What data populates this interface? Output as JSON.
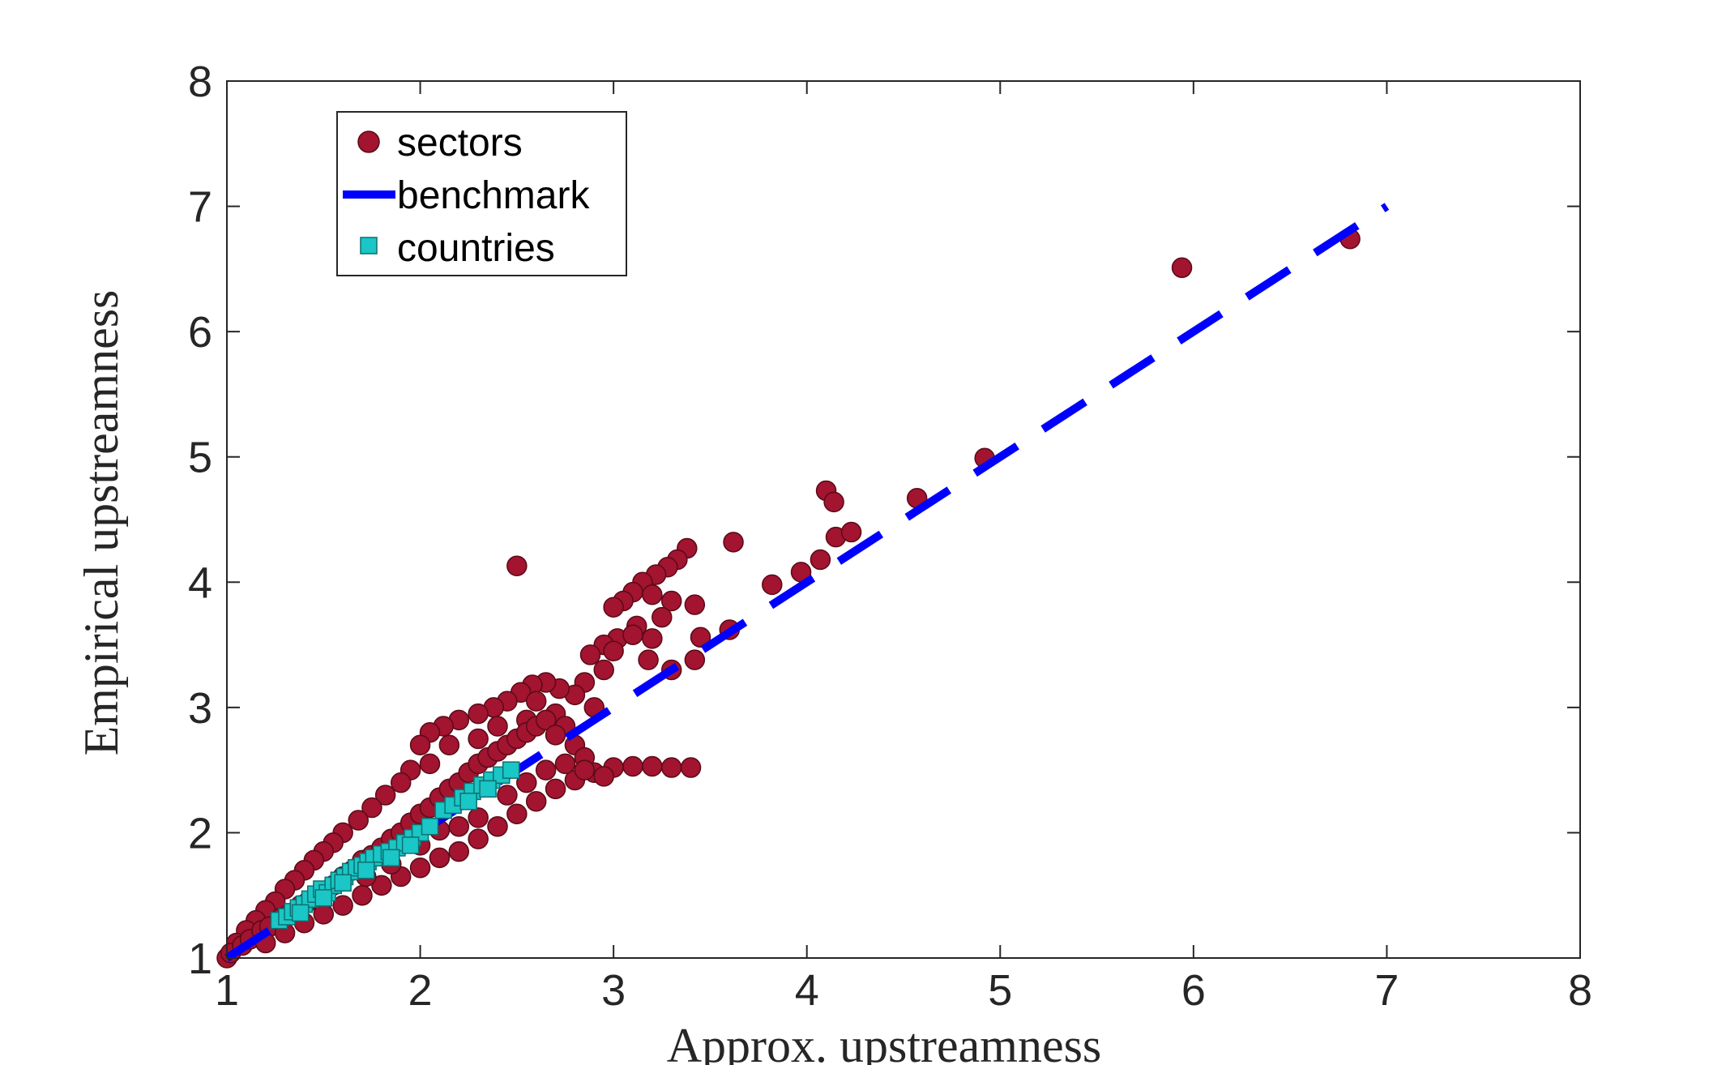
{
  "chart_data": {
    "type": "scatter",
    "xlabel": "Approx. upstreamness",
    "ylabel": "Empirical upstreamness",
    "xlim": [
      1,
      8
    ],
    "ylim": [
      1,
      8
    ],
    "xticks": [
      "1",
      "2",
      "3",
      "4",
      "5",
      "6",
      "7",
      "8"
    ],
    "yticks": [
      "1",
      "2",
      "3",
      "4",
      "5",
      "6",
      "7",
      "8"
    ],
    "grid": false,
    "legend_position": "top-left",
    "legend": [
      "sectors",
      "benchmark",
      "countries"
    ],
    "series": [
      {
        "name": "sectors",
        "kind": "scatter",
        "marker": "circle",
        "color": "#A2142F",
        "points": [
          [
            2.5,
            4.13
          ],
          [
            3.38,
            4.27
          ],
          [
            3.33,
            4.18
          ],
          [
            3.28,
            4.12
          ],
          [
            3.22,
            4.06
          ],
          [
            3.15,
            4.0
          ],
          [
            3.1,
            3.92
          ],
          [
            3.05,
            3.85
          ],
          [
            3.0,
            3.8
          ],
          [
            3.2,
            3.9
          ],
          [
            3.3,
            3.85
          ],
          [
            3.42,
            3.82
          ],
          [
            3.25,
            3.72
          ],
          [
            3.12,
            3.65
          ],
          [
            3.02,
            3.55
          ],
          [
            2.95,
            3.5
          ],
          [
            2.88,
            3.42
          ],
          [
            3.1,
            3.58
          ],
          [
            3.2,
            3.55
          ],
          [
            3.42,
            3.38
          ],
          [
            3.3,
            3.3
          ],
          [
            3.18,
            3.38
          ],
          [
            3.0,
            3.45
          ],
          [
            2.95,
            3.3
          ],
          [
            2.85,
            3.2
          ],
          [
            2.8,
            3.1
          ],
          [
            2.72,
            3.15
          ],
          [
            2.65,
            3.2
          ],
          [
            2.58,
            3.18
          ],
          [
            2.52,
            3.12
          ],
          [
            2.45,
            3.05
          ],
          [
            2.38,
            3.0
          ],
          [
            2.3,
            2.95
          ],
          [
            2.2,
            2.9
          ],
          [
            2.12,
            2.85
          ],
          [
            2.05,
            2.8
          ],
          [
            2.0,
            2.7
          ],
          [
            2.6,
            3.05
          ],
          [
            2.7,
            2.95
          ],
          [
            2.9,
            3.0
          ],
          [
            2.75,
            2.85
          ],
          [
            2.55,
            2.9
          ],
          [
            2.4,
            2.85
          ],
          [
            2.3,
            2.75
          ],
          [
            2.15,
            2.7
          ],
          [
            2.05,
            2.55
          ],
          [
            1.95,
            2.5
          ],
          [
            1.9,
            2.4
          ],
          [
            1.82,
            2.3
          ],
          [
            1.75,
            2.2
          ],
          [
            1.68,
            2.1
          ],
          [
            1.6,
            2.0
          ],
          [
            1.55,
            1.92
          ],
          [
            1.5,
            1.85
          ],
          [
            1.45,
            1.78
          ],
          [
            1.4,
            1.7
          ],
          [
            1.35,
            1.62
          ],
          [
            1.3,
            1.55
          ],
          [
            1.25,
            1.45
          ],
          [
            1.2,
            1.38
          ],
          [
            1.15,
            1.3
          ],
          [
            1.1,
            1.22
          ],
          [
            1.05,
            1.12
          ],
          [
            1.0,
            1.0
          ],
          [
            1.02,
            1.04
          ],
          [
            1.08,
            1.1
          ],
          [
            1.12,
            1.15
          ],
          [
            1.18,
            1.22
          ],
          [
            1.22,
            1.25
          ],
          [
            1.28,
            1.32
          ],
          [
            1.32,
            1.35
          ],
          [
            1.38,
            1.42
          ],
          [
            1.42,
            1.45
          ],
          [
            1.48,
            1.52
          ],
          [
            1.55,
            1.58
          ],
          [
            1.6,
            1.65
          ],
          [
            1.65,
            1.7
          ],
          [
            1.7,
            1.78
          ],
          [
            1.75,
            1.82
          ],
          [
            1.8,
            1.88
          ],
          [
            1.85,
            1.95
          ],
          [
            1.9,
            2.0
          ],
          [
            1.95,
            2.08
          ],
          [
            2.0,
            2.15
          ],
          [
            2.05,
            2.2
          ],
          [
            2.1,
            2.28
          ],
          [
            2.15,
            2.35
          ],
          [
            2.2,
            2.4
          ],
          [
            2.25,
            2.48
          ],
          [
            2.3,
            2.55
          ],
          [
            2.35,
            2.6
          ],
          [
            2.4,
            2.65
          ],
          [
            2.45,
            2.7
          ],
          [
            2.5,
            2.75
          ],
          [
            2.55,
            2.8
          ],
          [
            2.6,
            2.85
          ],
          [
            2.65,
            2.9
          ],
          [
            2.7,
            2.78
          ],
          [
            2.8,
            2.7
          ],
          [
            2.85,
            2.6
          ],
          [
            2.2,
            1.85
          ],
          [
            2.1,
            1.8
          ],
          [
            2.0,
            1.72
          ],
          [
            1.9,
            1.65
          ],
          [
            1.8,
            1.58
          ],
          [
            1.7,
            1.5
          ],
          [
            1.6,
            1.42
          ],
          [
            1.5,
            1.35
          ],
          [
            1.4,
            1.28
          ],
          [
            1.3,
            1.2
          ],
          [
            1.2,
            1.12
          ],
          [
            2.3,
            1.95
          ],
          [
            2.4,
            2.05
          ],
          [
            2.5,
            2.15
          ],
          [
            2.6,
            2.25
          ],
          [
            2.7,
            2.35
          ],
          [
            2.8,
            2.42
          ],
          [
            2.9,
            2.48
          ],
          [
            3.0,
            2.52
          ],
          [
            3.1,
            2.53
          ],
          [
            3.2,
            2.53
          ],
          [
            3.3,
            2.52
          ],
          [
            3.4,
            2.52
          ],
          [
            2.2,
            2.05
          ],
          [
            2.3,
            2.12
          ],
          [
            2.45,
            2.3
          ],
          [
            2.55,
            2.4
          ],
          [
            2.65,
            2.5
          ],
          [
            2.75,
            2.55
          ],
          [
            2.85,
            2.5
          ],
          [
            2.95,
            2.45
          ],
          [
            2.1,
            2.02
          ],
          [
            2.0,
            1.9
          ],
          [
            1.85,
            1.75
          ],
          [
            1.72,
            1.65
          ],
          [
            3.45,
            3.56
          ],
          [
            3.6,
            3.62
          ],
          [
            3.82,
            3.98
          ],
          [
            3.97,
            4.08
          ],
          [
            4.07,
            4.18
          ],
          [
            4.1,
            4.73
          ],
          [
            4.14,
            4.64
          ],
          [
            4.15,
            4.36
          ],
          [
            4.23,
            4.4
          ],
          [
            3.62,
            4.32
          ],
          [
            4.57,
            4.67
          ],
          [
            4.92,
            4.99
          ],
          [
            5.94,
            6.51
          ],
          [
            6.81,
            6.74
          ]
        ]
      },
      {
        "name": "benchmark",
        "kind": "line",
        "style": "dashed",
        "color": "#0000FF",
        "points": [
          [
            1,
            1
          ],
          [
            7,
            7
          ]
        ]
      },
      {
        "name": "countries",
        "kind": "scatter",
        "marker": "square",
        "color": "#1AC6C6",
        "points": [
          [
            1.27,
            1.3
          ],
          [
            1.31,
            1.33
          ],
          [
            1.34,
            1.37
          ],
          [
            1.37,
            1.4
          ],
          [
            1.4,
            1.43
          ],
          [
            1.43,
            1.47
          ],
          [
            1.46,
            1.51
          ],
          [
            1.49,
            1.55
          ],
          [
            1.52,
            1.52
          ],
          [
            1.55,
            1.58
          ],
          [
            1.58,
            1.62
          ],
          [
            1.61,
            1.65
          ],
          [
            1.64,
            1.69
          ],
          [
            1.67,
            1.72
          ],
          [
            1.7,
            1.74
          ],
          [
            1.73,
            1.77
          ],
          [
            1.76,
            1.8
          ],
          [
            1.8,
            1.83
          ],
          [
            1.84,
            1.85
          ],
          [
            1.88,
            1.88
          ],
          [
            1.92,
            1.92
          ],
          [
            1.96,
            1.96
          ],
          [
            2.0,
            2.0
          ],
          [
            2.05,
            2.05
          ],
          [
            2.12,
            2.18
          ],
          [
            2.17,
            2.22
          ],
          [
            2.22,
            2.28
          ],
          [
            2.27,
            2.33
          ],
          [
            2.32,
            2.38
          ],
          [
            2.37,
            2.42
          ],
          [
            2.42,
            2.46
          ],
          [
            2.47,
            2.5
          ],
          [
            1.5,
            1.48
          ],
          [
            1.6,
            1.6
          ],
          [
            1.72,
            1.7
          ],
          [
            1.85,
            1.8
          ],
          [
            1.95,
            1.9
          ],
          [
            2.25,
            2.25
          ],
          [
            2.35,
            2.35
          ],
          [
            1.38,
            1.36
          ]
        ]
      }
    ]
  }
}
